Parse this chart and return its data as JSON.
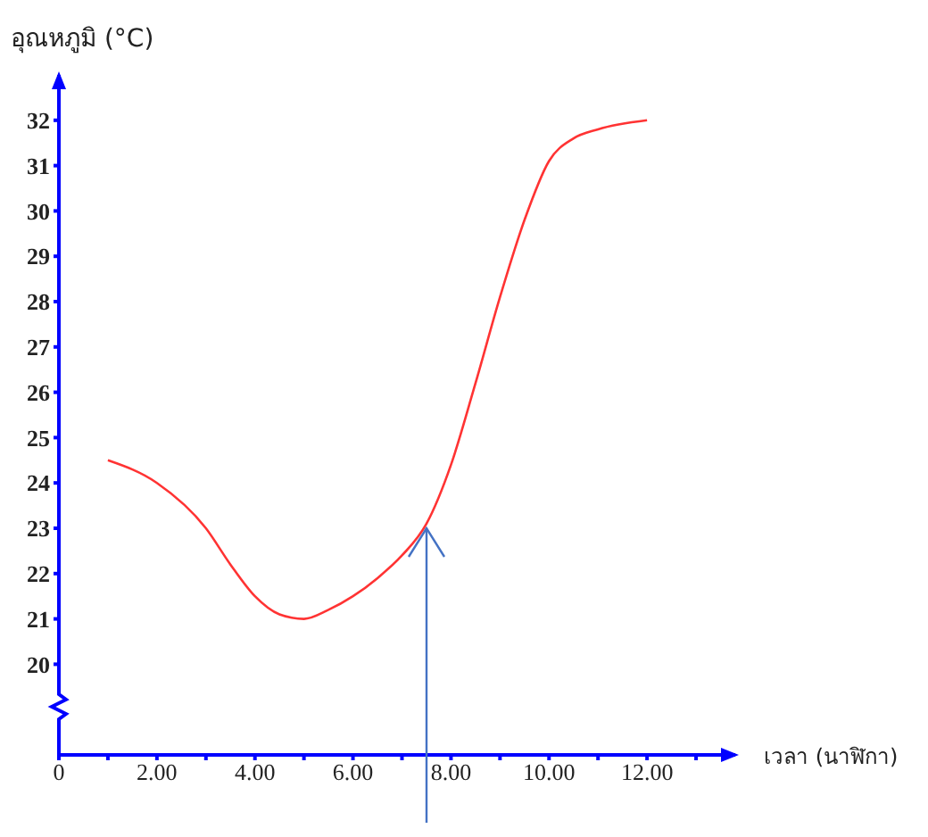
{
  "chart_data": {
    "type": "line",
    "xlabel": "เวลา (นาฬิกา)",
    "ylabel": "อุณหภูมิ (°C)",
    "x": [
      1,
      2,
      3,
      3.5,
      4,
      4.5,
      5,
      5.5,
      6,
      6.5,
      7,
      7.5,
      8,
      8.5,
      9,
      9.5,
      10,
      10.5,
      11,
      12
    ],
    "series": [
      {
        "color": "#ff3333",
        "values": [
          24.5,
          24,
          23,
          22.2,
          21.5,
          21.1,
          21,
          21.2,
          21.5,
          21.9,
          22.4,
          23.1,
          24.4,
          26.2,
          28.1,
          29.8,
          31.1,
          31.6,
          31.8,
          32
        ]
      }
    ],
    "xlim": [
      0,
      13.8
    ],
    "xticks": [
      {
        "value": 0,
        "label": "0"
      },
      {
        "value": 1,
        "label": null
      },
      {
        "value": 2,
        "label": "2.00"
      },
      {
        "value": 3,
        "label": null
      },
      {
        "value": 4,
        "label": "4.00"
      },
      {
        "value": 5,
        "label": null
      },
      {
        "value": 6,
        "label": "6.00"
      },
      {
        "value": 7,
        "label": null
      },
      {
        "value": 8,
        "label": "8.00"
      },
      {
        "value": 9,
        "label": null
      },
      {
        "value": 10,
        "label": "10.00"
      },
      {
        "value": 11,
        "label": null
      },
      {
        "value": 12,
        "label": "12.00"
      },
      {
        "value": 13,
        "label": null
      }
    ],
    "ylim": [
      18,
      33
    ],
    "yticks": [
      20,
      21,
      22,
      23,
      24,
      25,
      26,
      27,
      28,
      29,
      30,
      31,
      32
    ],
    "grid": false,
    "legend": false,
    "marker": "none",
    "line_style": "solid"
  }
}
